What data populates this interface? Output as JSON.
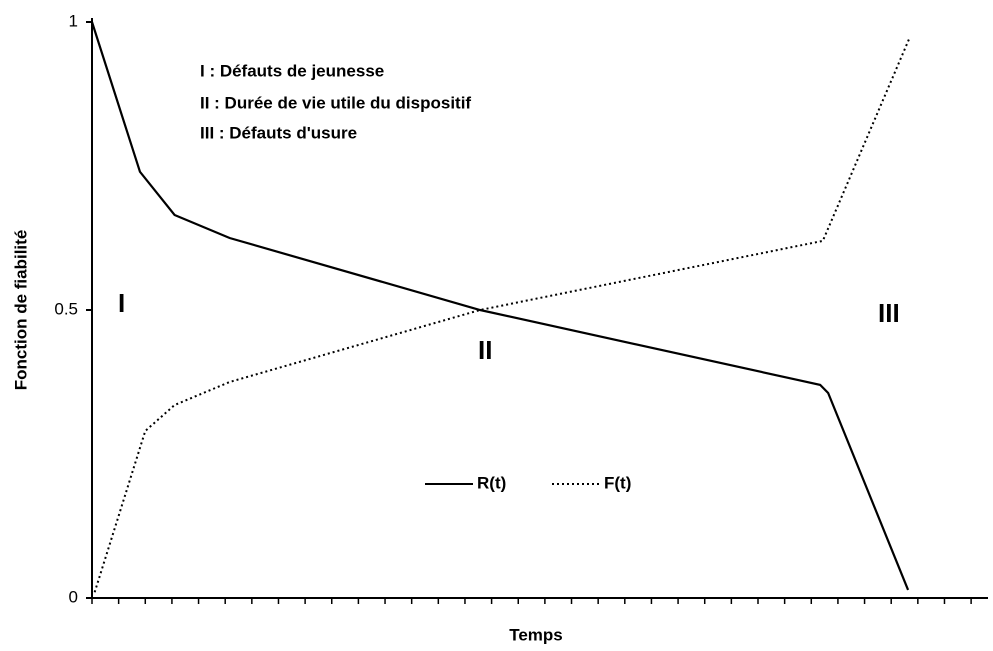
{
  "chart_data": {
    "type": "line",
    "ylabel": "Fonction de fiabilité",
    "xlabel": "Temps",
    "annotations": [
      "I : Défauts de jeunesse",
      "II : Durée de vie utile du dispositif",
      "III : Défauts d'usure"
    ],
    "regions": [
      "I",
      "II",
      "III"
    ],
    "xlim": [
      0,
      100
    ],
    "xticks": [
      0,
      3,
      6,
      9,
      12,
      15,
      18,
      21,
      24,
      27,
      30,
      33,
      36,
      39,
      42,
      45,
      48,
      51,
      54,
      57,
      60,
      63,
      66,
      69,
      72,
      75,
      78,
      81,
      84,
      87,
      90,
      93,
      96,
      99
    ],
    "ylim": [
      0,
      1
    ],
    "yticks": [
      0,
      0.5,
      1
    ],
    "grid": false,
    "series": [
      {
        "name": "R(t)",
        "color": "#000000",
        "style": "solid",
        "x": [
          0,
          5.4,
          9.3,
          15.5,
          43.7,
          82,
          82.9,
          91.9
        ],
        "values": [
          1,
          0.74,
          0.665,
          0.625,
          0.5,
          0.37,
          0.356,
          0.014
        ]
      },
      {
        "name": "F(t)",
        "color": "#000000",
        "style": "dotted",
        "x": [
          0.3,
          6,
          9.3,
          15.5,
          43.7,
          82.3,
          92
        ],
        "values": [
          0.01,
          0.29,
          0.335,
          0.375,
          0.5,
          0.62,
          0.97
        ]
      }
    ]
  }
}
